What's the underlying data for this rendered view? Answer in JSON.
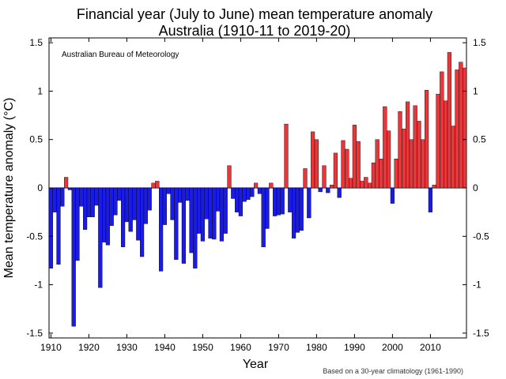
{
  "chart_data": {
    "type": "bar",
    "title_line1": "Financial year (July to June) mean temperature anomaly",
    "title_line2": "Australia (1910-11 to 2019-20)",
    "source_label": "Australian Bureau of Meteorology",
    "footnote": "Based on a 30-year climatology (1961-1990)",
    "xlabel": "Year",
    "ylabel": "Mean temperature anomaly (°C)",
    "xlim": [
      1909.5,
      2019.5
    ],
    "ylim": [
      -1.55,
      1.55
    ],
    "y_ticks": [
      1.5,
      1,
      0.5,
      0,
      -0.5,
      -1,
      -1.5
    ],
    "y_tick_labels": [
      "1.5",
      "1",
      "0.5",
      "0",
      "-0.5",
      "-1",
      "-1.5"
    ],
    "x_ticks": [
      1910,
      1920,
      1930,
      1940,
      1950,
      1960,
      1970,
      1980,
      1990,
      2000,
      2010
    ],
    "x_tick_labels": [
      "1910",
      "1920",
      "1930",
      "1940",
      "1950",
      "1960",
      "1970",
      "1980",
      "1990",
      "2000",
      "2010"
    ],
    "colors": {
      "positive": "#e8373a",
      "negative": "#1b1be6",
      "axis": "#000000"
    },
    "grid": false,
    "years": [
      1910,
      1911,
      1912,
      1913,
      1914,
      1915,
      1916,
      1917,
      1918,
      1919,
      1920,
      1921,
      1922,
      1923,
      1924,
      1925,
      1926,
      1927,
      1928,
      1929,
      1930,
      1931,
      1932,
      1933,
      1934,
      1935,
      1936,
      1937,
      1938,
      1939,
      1940,
      1941,
      1942,
      1943,
      1944,
      1945,
      1946,
      1947,
      1948,
      1949,
      1950,
      1951,
      1952,
      1953,
      1954,
      1955,
      1956,
      1957,
      1958,
      1959,
      1960,
      1961,
      1962,
      1963,
      1964,
      1965,
      1966,
      1967,
      1968,
      1969,
      1970,
      1971,
      1972,
      1973,
      1974,
      1975,
      1976,
      1977,
      1978,
      1979,
      1980,
      1981,
      1982,
      1983,
      1984,
      1985,
      1986,
      1987,
      1988,
      1989,
      1990,
      1991,
      1992,
      1993,
      1994,
      1995,
      1996,
      1997,
      1998,
      1999,
      2000,
      2001,
      2002,
      2003,
      2004,
      2005,
      2006,
      2007,
      2008,
      2009,
      2010,
      2011,
      2012,
      2013,
      2014,
      2015,
      2016,
      2017,
      2018,
      2019
    ],
    "values": [
      -0.83,
      -0.25,
      -0.79,
      -0.19,
      0.11,
      -0.02,
      -1.43,
      -0.75,
      -0.19,
      -0.43,
      -0.3,
      -0.3,
      -0.18,
      -1.03,
      -0.56,
      -0.59,
      -0.39,
      -0.28,
      -0.13,
      -0.61,
      -0.35,
      -0.45,
      -0.33,
      -0.54,
      -0.71,
      -0.37,
      -0.23,
      0.05,
      0.07,
      -0.86,
      -0.38,
      -0.06,
      -0.33,
      -0.74,
      -0.15,
      -0.78,
      -0.13,
      -0.67,
      -0.83,
      -0.47,
      -0.55,
      -0.32,
      -0.52,
      -0.53,
      -0.24,
      -0.55,
      -0.47,
      0.23,
      -0.11,
      -0.25,
      -0.29,
      -0.14,
      -0.12,
      -0.09,
      0.05,
      -0.06,
      -0.61,
      -0.42,
      0.05,
      -0.29,
      -0.28,
      -0.27,
      0.66,
      -0.25,
      -0.52,
      -0.46,
      -0.44,
      0.2,
      -0.31,
      0.58,
      0.5,
      -0.04,
      0.23,
      -0.05,
      0.03,
      0.36,
      -0.1,
      0.49,
      0.4,
      0.1,
      0.65,
      0.48,
      0.07,
      0.11,
      0.05,
      0.26,
      0.5,
      0.3,
      0.84,
      0.59,
      -0.16,
      0.3,
      0.79,
      0.61,
      0.89,
      0.5,
      0.85,
      0.69,
      0.5,
      1.01,
      -0.25,
      0.03,
      0.97,
      1.2,
      0.9,
      1.4,
      0.64,
      1.22,
      1.3,
      1.24
    ]
  }
}
